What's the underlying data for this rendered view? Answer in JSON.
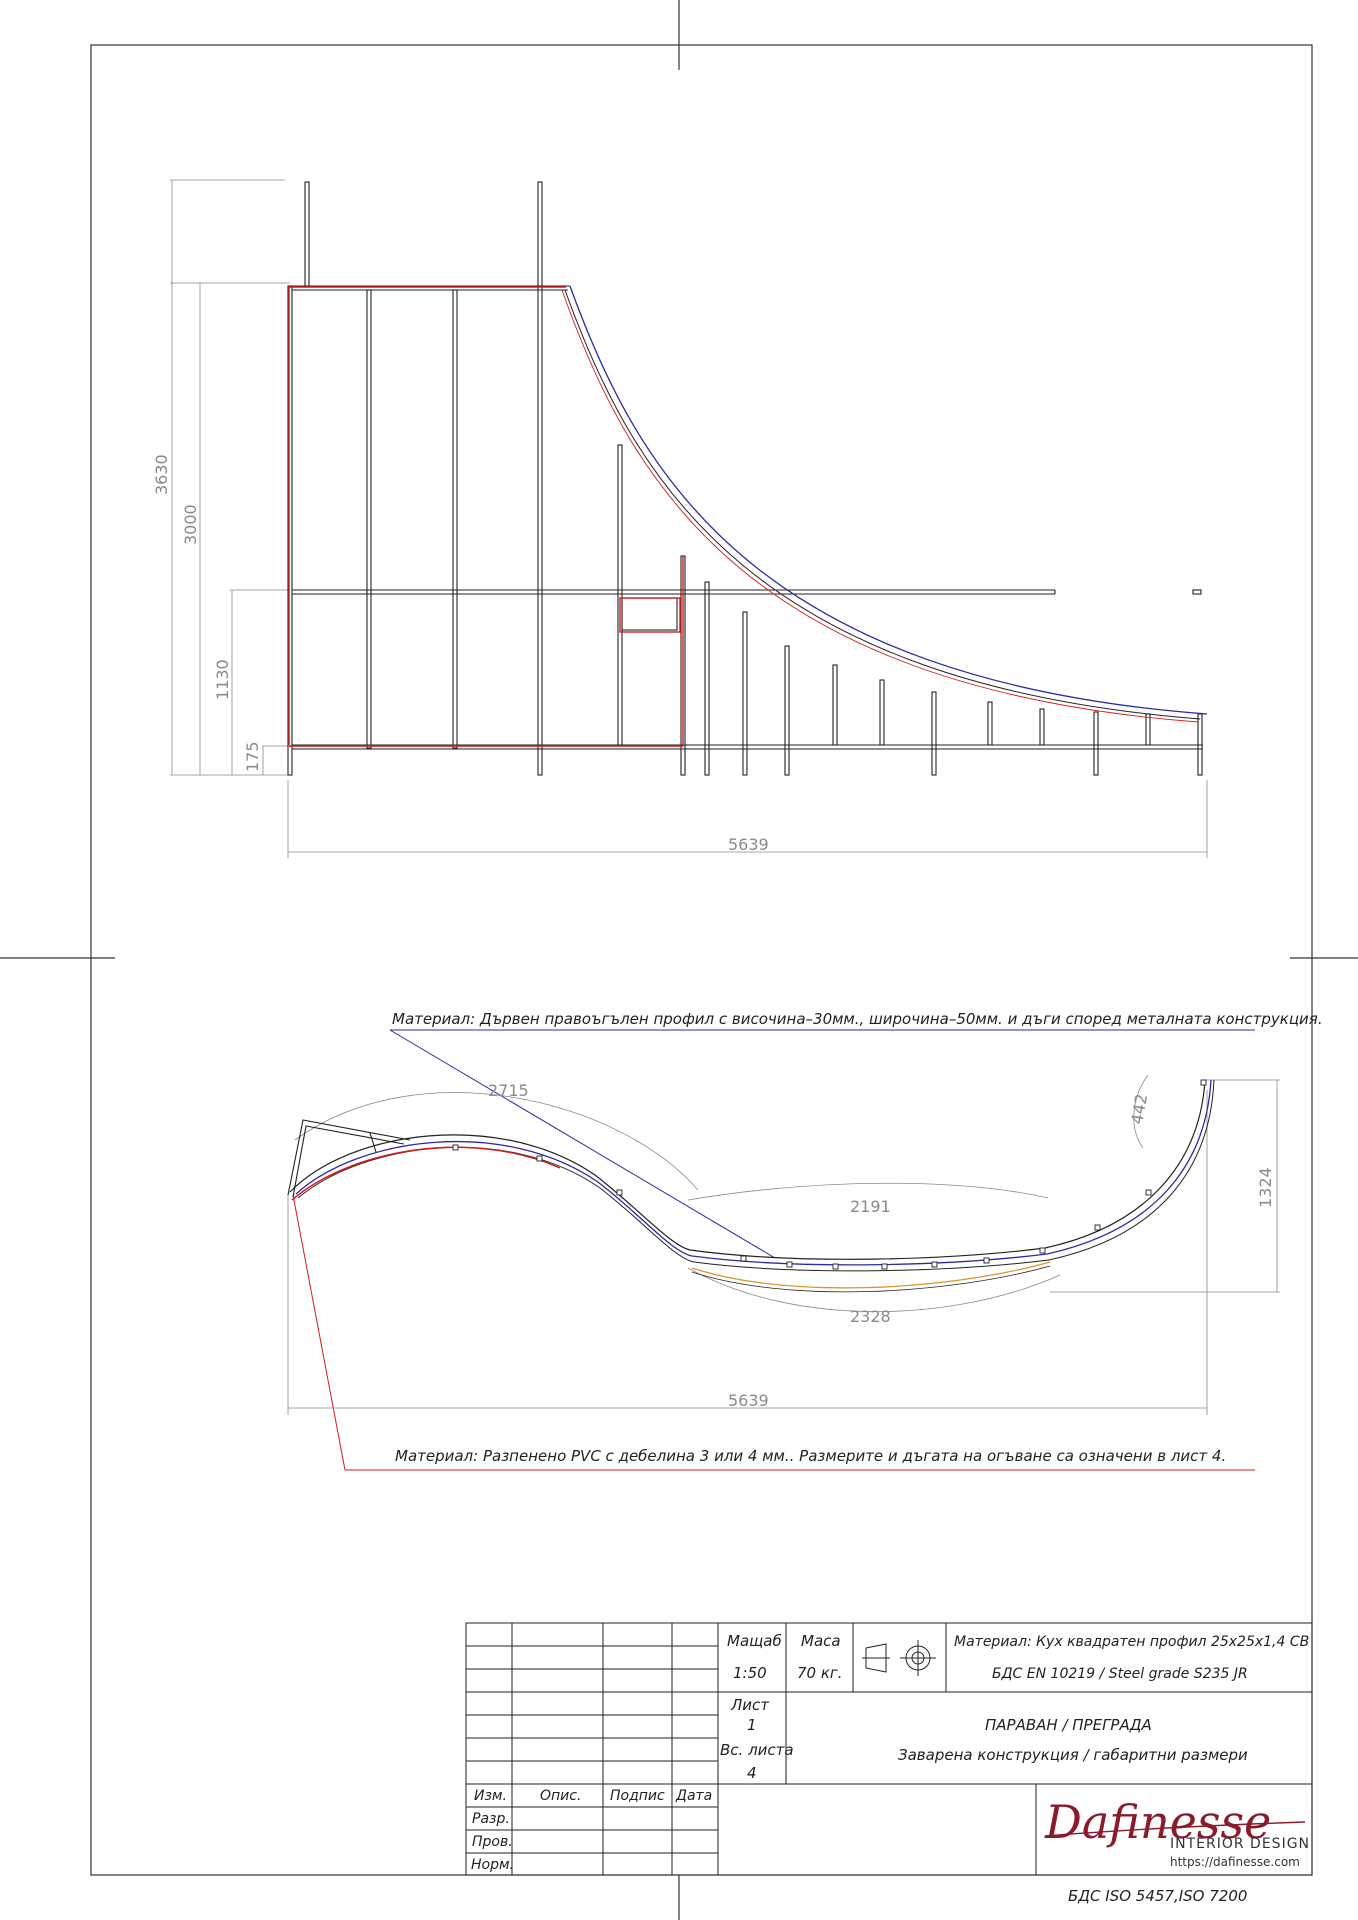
{
  "top_view": {
    "dims": {
      "overall_height": "3630",
      "frame_height": "3000",
      "mid_height": "1130",
      "base_height": "175",
      "width": "5639"
    }
  },
  "plan_view": {
    "dims": {
      "arc_left": "2715",
      "arc_inner_top": "2191",
      "arc_inner_bottom": "2328",
      "arc_right": "442",
      "depth": "1324",
      "width": "5639"
    },
    "note_top": "Материал: Дървен правоъгълен профил с височина–30мм., широчина–50мм. и дъги според металната конструкция.",
    "note_bottom": "Материал: Разпенено PVC с дебелина 3 или 4 мм.. Размерите и дъгата на огъване са означени в лист 4."
  },
  "title_block": {
    "scale_label": "Мащаб",
    "scale_value": "1:50",
    "mass_label": "Маса",
    "mass_value": "70 кг.",
    "material_line1": "Материал: Кух квадратен профил 25x25x1,4 СВ",
    "material_line2": "БДС EN 10219 / Steel grade S235 JR",
    "sheet_label": "Лист",
    "sheet_value": "1",
    "sheets_label": "Вс. листа",
    "sheets_value": "4",
    "title": "ПАРАВАН / ПРЕГРАДА",
    "subtitle": "Заварена конструкция / габаритни размери",
    "col_izm": "Изм.",
    "col_opis": "Опис.",
    "col_podpis": "Подпис",
    "col_data": "Дата",
    "row_razr": "Разр.",
    "row_prov": "Пров.",
    "row_norm": "Норм.",
    "standard": "БДС ISO 5457,ISO 7200"
  },
  "logo": {
    "name": "Dafinesse",
    "subtitle": "INTERIOR DESIGN",
    "url": "https://dafinesse.com"
  },
  "colors": {
    "frame": "#222222",
    "dimension": "#8a8a8a",
    "red": "#d41c1c",
    "blue": "#2a2aa8",
    "orange": "#d9962c",
    "brand": "#8b1a2b"
  }
}
